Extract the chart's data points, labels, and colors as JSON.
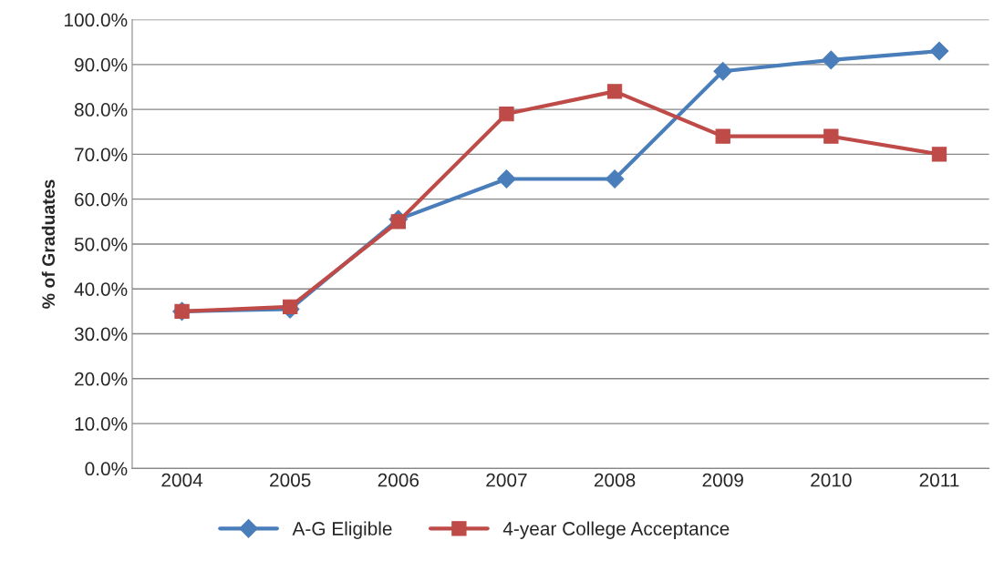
{
  "chart_data": {
    "type": "line",
    "ylabel": "% of Graduates",
    "categories": [
      "2004",
      "2005",
      "2006",
      "2007",
      "2008",
      "2009",
      "2010",
      "2011"
    ],
    "series": [
      {
        "name": "A-G Eligible",
        "color": "#4a7ebb",
        "marker": "diamond",
        "values": [
          35.0,
          35.5,
          55.5,
          64.5,
          64.5,
          88.5,
          91.0,
          93.0
        ]
      },
      {
        "name": "4-year College Acceptance",
        "color": "#be4b48",
        "marker": "square",
        "values": [
          35.0,
          36.0,
          55.0,
          79.0,
          84.0,
          74.0,
          74.0,
          70.0
        ]
      }
    ],
    "ylim": [
      0,
      100
    ],
    "yticks": [
      {
        "value": 0,
        "label": "0.0%"
      },
      {
        "value": 10,
        "label": "10.0%"
      },
      {
        "value": 20,
        "label": "20.0%"
      },
      {
        "value": 30,
        "label": "30.0%"
      },
      {
        "value": 40,
        "label": "40.0%"
      },
      {
        "value": 50,
        "label": "50.0%"
      },
      {
        "value": 60,
        "label": "60.0%"
      },
      {
        "value": 70,
        "label": "70.0%"
      },
      {
        "value": 80,
        "label": "80.0%"
      },
      {
        "value": 90,
        "label": "90.0%"
      },
      {
        "value": 100,
        "label": "100.0%"
      }
    ],
    "grid": "y",
    "legend": "bottom",
    "line_style": "solid"
  }
}
